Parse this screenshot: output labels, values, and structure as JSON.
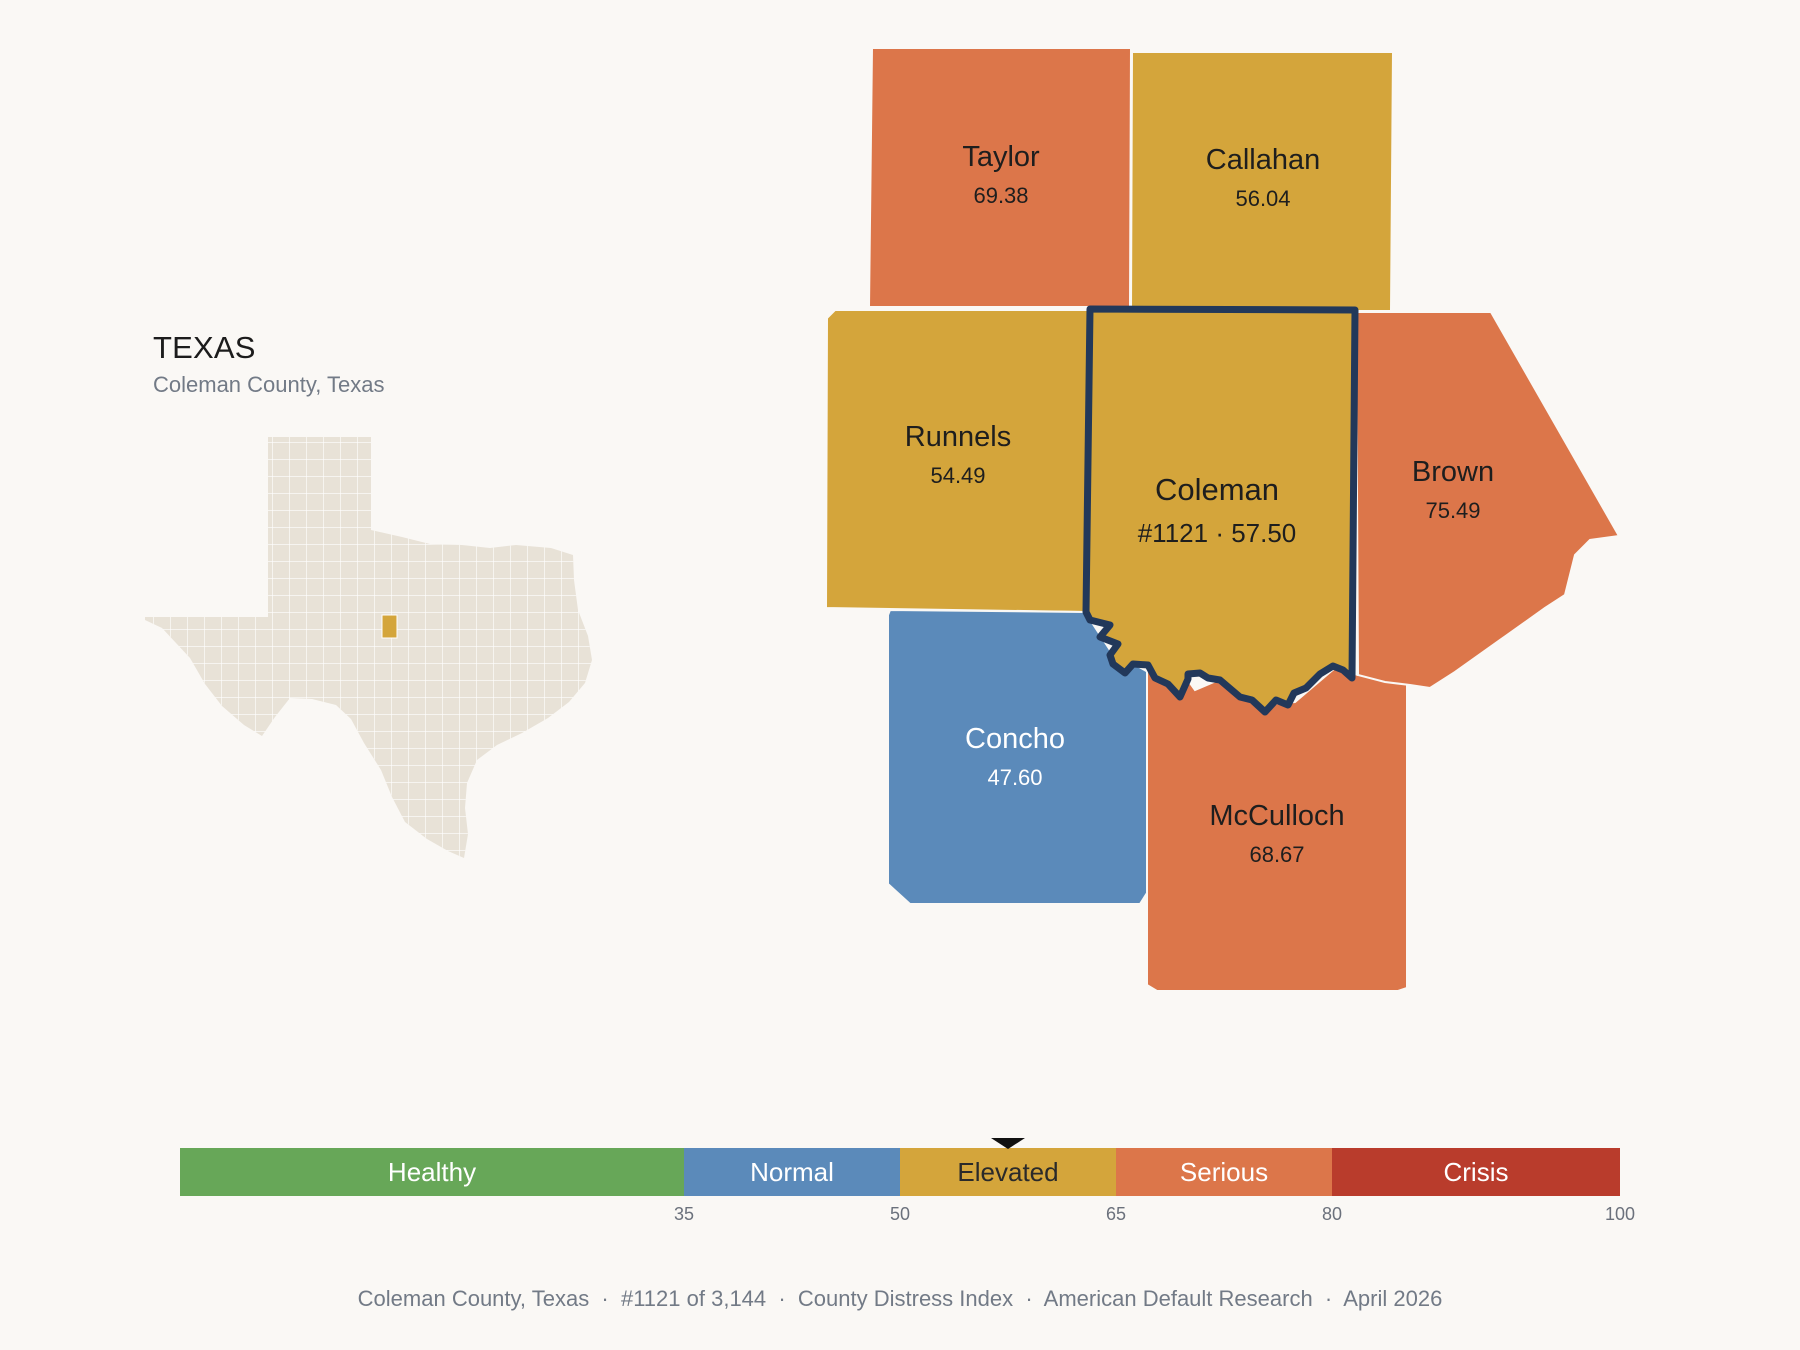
{
  "inset": {
    "title": "TEXAS",
    "subtitle": "Coleman County, Texas"
  },
  "colors": {
    "background": "#faf8f5",
    "state_fill": "#e8e2d7",
    "highlight": "#d4a53b",
    "focus_outline": "#22385a",
    "healthy": "#67a758",
    "normal": "#5b8aba",
    "elevated": "#d4a53b",
    "serious": "#dc764a",
    "crisis": "#b93c2c"
  },
  "counties": [
    {
      "id": "taylor",
      "name": "Taylor",
      "value": "69.38",
      "category": "serious"
    },
    {
      "id": "callahan",
      "name": "Callahan",
      "value": "56.04",
      "category": "elevated"
    },
    {
      "id": "runnels",
      "name": "Runnels",
      "value": "54.49",
      "category": "elevated"
    },
    {
      "id": "coleman",
      "name": "Coleman",
      "value": "#1121 · 57.50",
      "category": "elevated",
      "focus": true
    },
    {
      "id": "brown",
      "name": "Brown",
      "value": "75.49",
      "category": "serious"
    },
    {
      "id": "concho",
      "name": "Concho",
      "value": "47.60",
      "category": "normal"
    },
    {
      "id": "mcculloch",
      "name": "McCulloch",
      "value": "68.67",
      "category": "serious"
    }
  ],
  "scale": {
    "min": 0,
    "max": 100,
    "marker_value": 57.5,
    "segments": [
      {
        "label": "Healthy",
        "from": 0,
        "to": 35,
        "category": "healthy"
      },
      {
        "label": "Normal",
        "from": 35,
        "to": 50,
        "category": "normal"
      },
      {
        "label": "Elevated",
        "from": 50,
        "to": 65,
        "category": "elevated"
      },
      {
        "label": "Serious",
        "from": 65,
        "to": 80,
        "category": "serious"
      },
      {
        "label": "Crisis",
        "from": 80,
        "to": 100,
        "category": "crisis"
      }
    ],
    "ticks": [
      "35",
      "50",
      "65",
      "80",
      "100"
    ]
  },
  "footer": "Coleman County, Texas  ·  #1121 of 3,144  ·  County Distress Index  ·  American Default Research  ·  April 2026"
}
